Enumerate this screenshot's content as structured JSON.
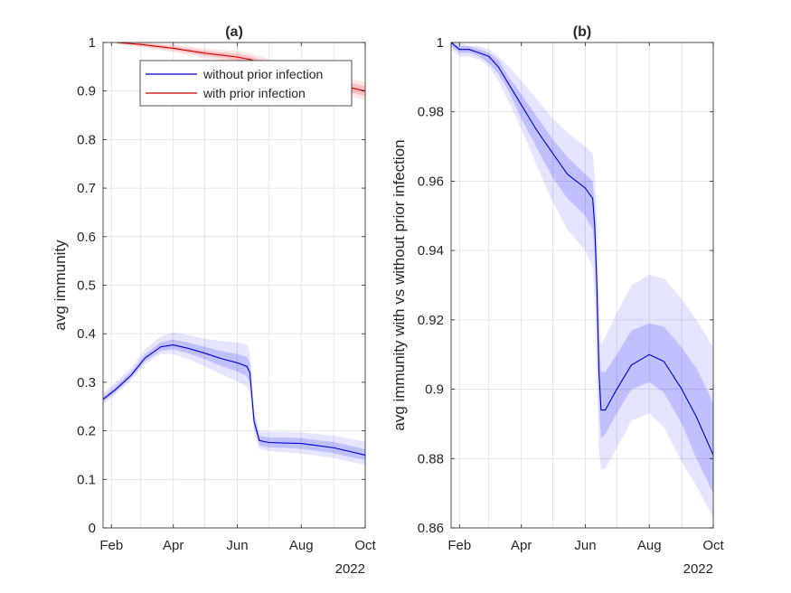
{
  "chart_data": [
    {
      "type": "line",
      "title": "(a)",
      "ylabel": "avg immunity",
      "xlabel": "",
      "x_axis_type": "date",
      "xlim": [
        "2022-01-24",
        "2022-10-01"
      ],
      "ylim": [
        0,
        1
      ],
      "x_ticks": [
        {
          "date": "2022-02-01",
          "label": "Feb"
        },
        {
          "date": "2022-04-01",
          "label": "Apr"
        },
        {
          "date": "2022-06-01",
          "label": "Jun"
        },
        {
          "date": "2022-08-01",
          "label": "Aug"
        },
        {
          "date": "2022-10-01",
          "label": "Oct"
        }
      ],
      "x_year_label": "2022",
      "x_grid": [
        "2022-02-01",
        "2022-03-01",
        "2022-04-01",
        "2022-05-01",
        "2022-06-01",
        "2022-07-01",
        "2022-08-01",
        "2022-09-01",
        "2022-10-01"
      ],
      "y_ticks": [
        0,
        0.1,
        0.2,
        0.3,
        0.4,
        0.5,
        0.6,
        0.7,
        0.8,
        0.9,
        1
      ],
      "y_tick_labels": [
        "0",
        "0.1",
        "0.2",
        "0.3",
        "0.4",
        "0.5",
        "0.6",
        "0.7",
        "0.8",
        "0.9",
        "1"
      ],
      "grid": true,
      "legend": "top-right",
      "series": [
        {
          "name": "without prior infection",
          "color": "#0000cc",
          "band_color": "#0000ff",
          "x": [
            "2022-01-24",
            "2022-02-05",
            "2022-02-20",
            "2022-03-05",
            "2022-03-20",
            "2022-04-01",
            "2022-04-15",
            "2022-05-01",
            "2022-05-15",
            "2022-06-01",
            "2022-06-10",
            "2022-06-13",
            "2022-06-17",
            "2022-06-22",
            "2022-07-01",
            "2022-07-15",
            "2022-08-01",
            "2022-08-15",
            "2022-09-01",
            "2022-09-15",
            "2022-10-01"
          ],
          "y": [
            0.265,
            0.285,
            0.315,
            0.35,
            0.373,
            0.377,
            0.37,
            0.36,
            0.35,
            0.34,
            0.333,
            0.32,
            0.22,
            0.18,
            0.176,
            0.175,
            0.174,
            0.17,
            0.165,
            0.158,
            0.15
          ],
          "inner_lo": [
            0.26,
            0.28,
            0.31,
            0.343,
            0.365,
            0.368,
            0.36,
            0.348,
            0.335,
            0.322,
            0.313,
            0.3,
            0.208,
            0.17,
            0.166,
            0.165,
            0.163,
            0.159,
            0.154,
            0.147,
            0.14
          ],
          "inner_hi": [
            0.27,
            0.292,
            0.322,
            0.358,
            0.382,
            0.388,
            0.382,
            0.373,
            0.365,
            0.358,
            0.352,
            0.34,
            0.232,
            0.19,
            0.186,
            0.186,
            0.185,
            0.181,
            0.177,
            0.17,
            0.162
          ],
          "outer_lo": [
            0.255,
            0.275,
            0.304,
            0.337,
            0.358,
            0.358,
            0.348,
            0.333,
            0.318,
            0.302,
            0.291,
            0.278,
            0.195,
            0.163,
            0.158,
            0.156,
            0.153,
            0.149,
            0.144,
            0.137,
            0.13
          ],
          "outer_hi": [
            0.278,
            0.3,
            0.33,
            0.368,
            0.394,
            0.403,
            0.397,
            0.39,
            0.385,
            0.382,
            0.378,
            0.362,
            0.245,
            0.2,
            0.198,
            0.198,
            0.197,
            0.194,
            0.19,
            0.184,
            0.178
          ]
        },
        {
          "name": "with prior infection",
          "color": "#cc0000",
          "band_color": "#ff0000",
          "x": [
            "2022-02-06",
            "2022-03-01",
            "2022-04-01",
            "2022-05-01",
            "2022-06-01",
            "2022-06-13",
            "2022-07-01",
            "2022-08-01",
            "2022-09-01",
            "2022-10-01"
          ],
          "y": [
            1.0,
            0.996,
            0.988,
            0.978,
            0.97,
            0.965,
            0.952,
            0.935,
            0.915,
            0.9
          ],
          "inner_lo": [
            0.998,
            0.993,
            0.984,
            0.973,
            0.964,
            0.958,
            0.945,
            0.927,
            0.906,
            0.89
          ],
          "inner_hi": [
            1.0,
            0.999,
            0.992,
            0.983,
            0.976,
            0.972,
            0.959,
            0.943,
            0.924,
            0.91
          ],
          "outer_lo": [
            0.996,
            0.99,
            0.98,
            0.968,
            0.958,
            0.952,
            0.938,
            0.92,
            0.898,
            0.881
          ],
          "outer_hi": [
            1.0,
            1.0,
            0.996,
            0.988,
            0.982,
            0.978,
            0.966,
            0.951,
            0.933,
            0.918
          ]
        }
      ]
    },
    {
      "type": "line",
      "title": "(b)",
      "ylabel": "avg immunity with vs without prior infection",
      "xlabel": "",
      "x_axis_type": "date",
      "xlim": [
        "2022-01-24",
        "2022-10-01"
      ],
      "ylim": [
        0.86,
        1
      ],
      "x_ticks": [
        {
          "date": "2022-02-01",
          "label": "Feb"
        },
        {
          "date": "2022-04-01",
          "label": "Apr"
        },
        {
          "date": "2022-06-01",
          "label": "Jun"
        },
        {
          "date": "2022-08-01",
          "label": "Aug"
        },
        {
          "date": "2022-10-01",
          "label": "Oct"
        }
      ],
      "x_year_label": "2022",
      "x_grid": [
        "2022-02-01",
        "2022-03-01",
        "2022-04-01",
        "2022-05-01",
        "2022-06-01",
        "2022-07-01",
        "2022-08-01",
        "2022-09-01",
        "2022-10-01"
      ],
      "y_ticks": [
        0.86,
        0.88,
        0.9,
        0.92,
        0.94,
        0.96,
        0.98,
        1
      ],
      "y_tick_labels": [
        "0.86",
        "0.88",
        "0.9",
        "0.92",
        "0.94",
        "0.96",
        "0.98",
        "1"
      ],
      "grid": true,
      "series": [
        {
          "color": "#0000cc",
          "band_color": "#0000ff",
          "x": [
            "2022-01-24",
            "2022-02-01",
            "2022-02-10",
            "2022-02-20",
            "2022-03-01",
            "2022-03-10",
            "2022-03-20",
            "2022-04-01",
            "2022-04-15",
            "2022-05-01",
            "2022-05-15",
            "2022-06-01",
            "2022-06-08",
            "2022-06-10",
            "2022-06-12",
            "2022-06-14",
            "2022-06-16",
            "2022-06-20",
            "2022-07-01",
            "2022-07-15",
            "2022-08-01",
            "2022-08-15",
            "2022-09-01",
            "2022-09-15",
            "2022-10-01"
          ],
          "y": [
            1.0,
            0.998,
            0.998,
            0.997,
            0.996,
            0.993,
            0.988,
            0.982,
            0.975,
            0.968,
            0.962,
            0.958,
            0.955,
            0.947,
            0.93,
            0.905,
            0.894,
            0.894,
            0.9,
            0.907,
            0.91,
            0.908,
            0.9,
            0.892,
            0.881
          ],
          "inner_lo": [
            0.999,
            0.997,
            0.997,
            0.996,
            0.994,
            0.991,
            0.986,
            0.978,
            0.97,
            0.961,
            0.955,
            0.95,
            0.946,
            0.938,
            0.92,
            0.895,
            0.886,
            0.887,
            0.893,
            0.9,
            0.902,
            0.899,
            0.89,
            0.88,
            0.87
          ],
          "inner_hi": [
            1.0,
            0.999,
            0.999,
            0.998,
            0.997,
            0.995,
            0.99,
            0.985,
            0.979,
            0.972,
            0.967,
            0.962,
            0.96,
            0.953,
            0.938,
            0.915,
            0.905,
            0.905,
            0.91,
            0.917,
            0.919,
            0.918,
            0.912,
            0.906,
            0.896
          ],
          "outer_lo": [
            0.998,
            0.996,
            0.996,
            0.995,
            0.993,
            0.989,
            0.983,
            0.975,
            0.965,
            0.954,
            0.946,
            0.94,
            0.935,
            0.925,
            0.905,
            0.882,
            0.877,
            0.877,
            0.883,
            0.891,
            0.893,
            0.889,
            0.879,
            0.872,
            0.863
          ],
          "outer_hi": [
            1.0,
            1.0,
            0.999,
            0.999,
            0.998,
            0.996,
            0.993,
            0.989,
            0.984,
            0.978,
            0.974,
            0.97,
            0.968,
            0.962,
            0.948,
            0.925,
            0.913,
            0.915,
            0.922,
            0.93,
            0.933,
            0.932,
            0.926,
            0.92,
            0.912
          ]
        }
      ]
    }
  ]
}
